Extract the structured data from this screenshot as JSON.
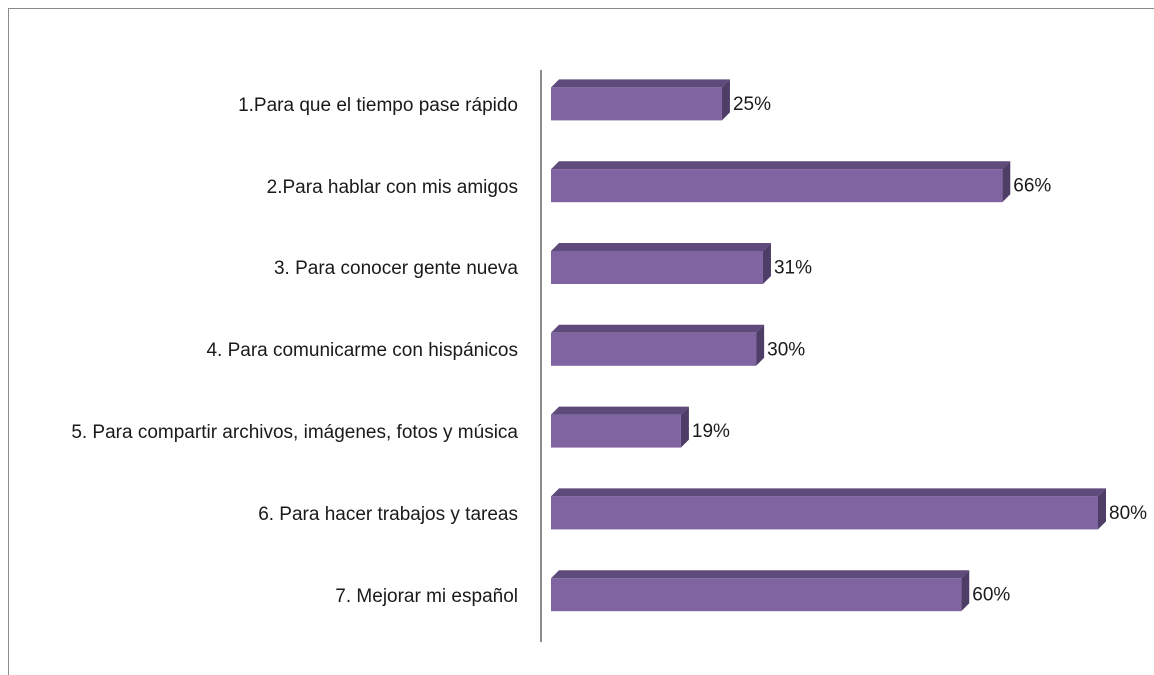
{
  "chart_data": {
    "type": "bar",
    "orientation": "horizontal",
    "categories": [
      "1.Para que el tiempo pase rápido",
      "2.Para hablar con mis amigos",
      "3. Para conocer gente nueva",
      "4. Para comunicarme con hispánicos",
      "5. Para compartir archivos, imágenes, fotos y música",
      "6. Para hacer trabajos y tareas",
      "7. Mejorar mi español"
    ],
    "values": [
      25,
      66,
      31,
      30,
      19,
      80,
      60
    ],
    "value_labels": [
      "25%",
      "66%",
      "31%",
      "30%",
      "19%",
      "80%",
      "60%"
    ],
    "color": "#8064a2"
  }
}
